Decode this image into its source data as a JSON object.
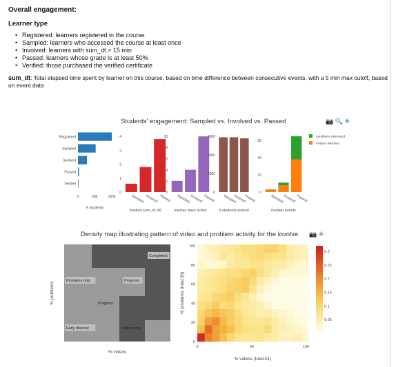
{
  "header": {
    "title": "Overall engagement:",
    "learner_type_heading": "Learner type",
    "bullets": [
      "Registered: learners registered in the course",
      "Sampled: learners who accessed the course at least once",
      "Involved: learners with sum_dt > 15 min",
      "Passed: learners whose grade is at least 50%",
      "Verified: those purchased the verified certificate"
    ],
    "sum_dt_label": "sum_dt",
    "sum_dt_text": ": Total elapsed time spent by learner on this course, based on time difference between consecutive events, with a 5 min max cutoff, based on event data"
  },
  "toolbar_icons": [
    "camera-icon",
    "zoom-icon",
    "pan-icon"
  ],
  "chart_data": [
    {
      "type": "bar",
      "title": "Students' engagement: Sampled vs. Involved vs. Passed",
      "orientation": "horizontal",
      "xlabel": "# students",
      "categories": [
        "Registered",
        "Sampled",
        "Involved",
        "Passed",
        "Verified"
      ],
      "values": [
        105000,
        55000,
        28000,
        3000,
        800
      ],
      "xticks": [
        "0",
        "50k",
        "100k"
      ],
      "xlim": [
        0,
        105000
      ],
      "color": "#2b7bba"
    },
    {
      "type": "bar",
      "xlabel": "median sum_dt (H)",
      "categories": [
        "Sampled",
        "Involved",
        "Passed"
      ],
      "values": [
        0.6,
        1.8,
        3.8
      ],
      "yticks": [
        "0",
        "1",
        "2",
        "3",
        "4"
      ],
      "ylim": [
        0,
        4.2
      ],
      "color": "#d62728"
    },
    {
      "type": "bar",
      "xlabel": "median days active",
      "categories": [
        "Sampled",
        "Involved",
        "Passed"
      ],
      "values": [
        2,
        4,
        10
      ],
      "yticks": [
        "0",
        "2",
        "4",
        "6",
        "8",
        "10"
      ],
      "ylim": [
        0,
        10.5
      ],
      "color": "#9467bd"
    },
    {
      "type": "bar",
      "xlabel": "# students posted",
      "categories": [
        "Sampled",
        "Involved",
        "Passed"
      ],
      "values": [
        5900,
        5900,
        5800
      ],
      "yticks": [
        "0",
        "2000",
        "4000",
        "6000"
      ],
      "ylim": [
        0,
        6300
      ],
      "color": "#8c564b"
    },
    {
      "type": "bar",
      "stacked": true,
      "xlabel": "median events",
      "categories": [
        "Sampled",
        "Involved",
        "Passed"
      ],
      "series": [
        {
          "name": "nvideos watched",
          "values": [
            3,
            8,
            38
          ],
          "color": "#ff7f0e"
        },
        {
          "name": "nproblems attempted",
          "values": [
            0,
            3,
            27
          ],
          "color": "#2ca02c"
        }
      ],
      "yticks": [
        "0",
        "20",
        "40",
        "60"
      ],
      "ylim": [
        0,
        68
      ],
      "legend": "top-right"
    },
    {
      "type": "heatmap",
      "title": "Density map illustrating pattern of video and problem activity for the involve",
      "xlabel": "% videos",
      "ylabel": "% problems",
      "regions": [
        {
          "label": "Completed"
        },
        {
          "label": "Problems only"
        },
        {
          "label": "Progress"
        },
        {
          "label": "Progress"
        },
        {
          "label": "Early dropout"
        },
        {
          "label": "Videos only"
        }
      ]
    },
    {
      "type": "heatmap",
      "xlabel": "% videos (total:51)",
      "ylabel": "% problems (total:36)",
      "xticks": [
        "0",
        "50",
        "100"
      ],
      "yticks": [
        "0",
        "20",
        "40",
        "60",
        "80",
        "100"
      ],
      "colorbar_ticks": [
        "0.05",
        "0.1",
        "0.15",
        "0.2",
        "0.25",
        "0.3"
      ],
      "colorscale": [
        "#fffff2",
        "#fbe48a",
        "#f5b33a",
        "#e8692a",
        "#cf2020"
      ],
      "grid": [
        [
          0.02,
          0.04,
          0.05,
          0.06,
          0.07,
          0.08,
          0.09,
          0.09,
          0.1,
          0.11,
          0.11,
          0.09,
          0.06,
          0.05,
          0.04
        ],
        [
          0.02,
          0.03,
          0.04,
          0.07,
          0.06,
          0.07,
          0.08,
          0.09,
          0.1,
          0.09,
          0.08,
          0.08,
          0.06,
          0.05,
          0.04
        ],
        [
          0.03,
          0.02,
          0.02,
          0.03,
          0.06,
          0.07,
          0.07,
          0.08,
          0.08,
          0.07,
          0.06,
          0.06,
          0.04,
          0.03,
          0.02
        ],
        [
          0.05,
          0.06,
          0.07,
          0.08,
          0.09,
          0.09,
          0.1,
          0.11,
          0.09,
          0.07,
          0.05,
          0.03,
          0.02,
          0.02,
          0.02
        ],
        [
          0.06,
          0.07,
          0.08,
          0.09,
          0.1,
          0.11,
          0.12,
          0.1,
          0.06,
          0.04,
          0.02,
          0.01,
          0.01,
          0.01,
          0.01
        ],
        [
          0.06,
          0.07,
          0.08,
          0.09,
          0.11,
          0.11,
          0.12,
          0.08,
          0.04,
          0.02,
          0.01,
          0.01,
          0.01,
          0.01,
          0.01
        ],
        [
          0.07,
          0.08,
          0.1,
          0.11,
          0.12,
          0.09,
          0.07,
          0.05,
          0.02,
          0.01,
          0.01,
          0.01,
          0.01,
          0.01,
          0.01
        ],
        [
          0.09,
          0.1,
          0.12,
          0.09,
          0.1,
          0.08,
          0.06,
          0.06,
          0.05,
          0.03,
          0.01,
          0.01,
          0.01,
          0.01,
          0.01
        ],
        [
          0.1,
          0.13,
          0.15,
          0.13,
          0.12,
          0.09,
          0.07,
          0.06,
          0.05,
          0.05,
          0.04,
          0.03,
          0.02,
          0.01,
          0.01
        ],
        [
          0.11,
          0.18,
          0.2,
          0.15,
          0.12,
          0.1,
          0.08,
          0.07,
          0.07,
          0.08,
          0.06,
          0.04,
          0.03,
          0.02,
          0.01
        ],
        [
          0.14,
          0.24,
          0.18,
          0.16,
          0.14,
          0.1,
          0.09,
          0.08,
          0.08,
          0.1,
          0.06,
          0.05,
          0.04,
          0.03,
          0.02
        ],
        [
          0.31,
          0.21,
          0.18,
          0.14,
          0.1,
          0.08,
          0.07,
          0.07,
          0.08,
          0.06,
          0.06,
          0.04,
          0.04,
          0.05,
          0.03
        ]
      ]
    }
  ]
}
